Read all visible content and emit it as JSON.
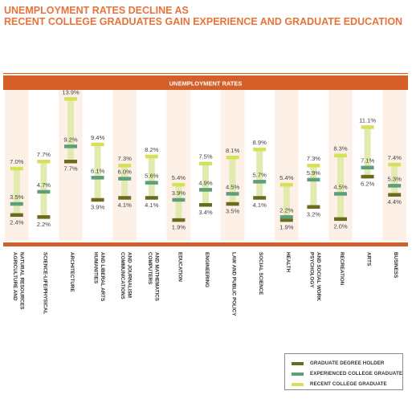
{
  "title_line1": "UNEMPLOYMENT RATES DECLINE AS",
  "title_line2": "RECENT COLLEGE GRADUATES GAIN EXPERIENCE AND GRADUATE EDUCATION",
  "colors": {
    "accent": "#e8733a",
    "header_band": "#d45f29",
    "column_bg": "#fdf0e7",
    "graduate_degree": "#6b6b1f",
    "experienced": "#5e9e7c",
    "recent": "#d6e05b",
    "range_fill": "#e2eab0"
  },
  "chart_data": {
    "type": "range",
    "header": "UNEMPLOYMENT RATES",
    "categories": [
      "AGRICULTURE AND\nNATURAL RESOURCES",
      "SCIENCE-LIFE/PHYSICAL",
      "ARCHITECTURE",
      "HUMANITIES\nAND LIBERAL ARTS",
      "COMMUNICATIONS\nAND JOURNALISM",
      "COMPUTERS\nAND MATHEMATICS",
      "EDUCATION",
      "ENGINEERING",
      "LAW AND PUBLIC POLICY",
      "SOCIAL SCIENCE",
      "HEALTH",
      "PSYCHOLOGY\nAND SOCIAL WORK",
      "RECREATION",
      "ARTS",
      "BUSINESS"
    ],
    "series": [
      {
        "name": "GRADUATE DEGREE HOLDER",
        "color_key": "graduate_degree",
        "values": [
          2.4,
          2.2,
          7.7,
          3.9,
          4.1,
          4.1,
          1.9,
          3.4,
          3.5,
          4.1,
          1.9,
          3.2,
          2.0,
          6.2,
          4.4
        ]
      },
      {
        "name": "EXPERIENCED COLLEGE GRADUATE",
        "color_key": "experienced",
        "values": [
          3.5,
          4.7,
          9.2,
          6.1,
          6.0,
          5.6,
          3.9,
          4.9,
          4.5,
          5.7,
          2.2,
          5.9,
          4.5,
          7.1,
          5.3
        ]
      },
      {
        "name": "RECENT COLLEGE GRADUATE",
        "color_key": "recent",
        "values": [
          7.0,
          7.7,
          13.9,
          9.4,
          7.3,
          8.2,
          5.4,
          7.5,
          8.1,
          8.9,
          5.4,
          7.3,
          8.3,
          11.1,
          7.4
        ]
      }
    ],
    "value_suffix": "%",
    "grid": false,
    "legend_position": "bottom-right"
  }
}
